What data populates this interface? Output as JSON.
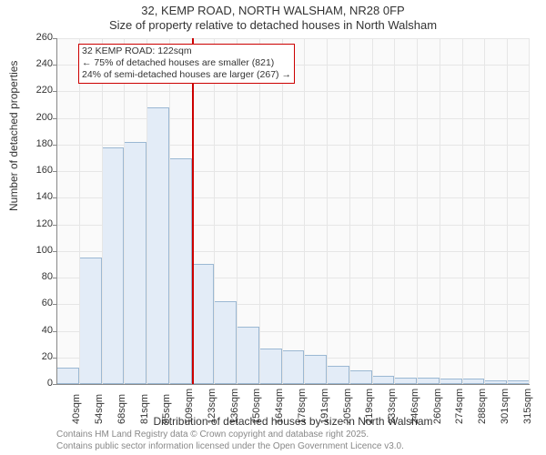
{
  "title": {
    "line1": "32, KEMP ROAD, NORTH WALSHAM, NR28 0FP",
    "line2": "Size of property relative to detached houses in North Walsham"
  },
  "chart": {
    "type": "histogram",
    "background_color": "#fafafa",
    "bar_fill": "#e3ecf7",
    "bar_stroke": "#9bb8d3",
    "grid_color": "#e6e6e6",
    "axis_color": "#888",
    "y": {
      "label": "Number of detached properties",
      "min": 0,
      "max": 260,
      "step": 20,
      "ticks": [
        0,
        20,
        40,
        60,
        80,
        100,
        120,
        140,
        160,
        180,
        200,
        220,
        240,
        260
      ]
    },
    "x": {
      "label": "Distribution of detached houses by size in North Walsham",
      "ticks": [
        "40sqm",
        "54sqm",
        "68sqm",
        "81sqm",
        "95sqm",
        "109sqm",
        "123sqm",
        "136sqm",
        "150sqm",
        "164sqm",
        "178sqm",
        "191sqm",
        "205sqm",
        "219sqm",
        "233sqm",
        "246sqm",
        "260sqm",
        "274sqm",
        "288sqm",
        "301sqm",
        "315sqm"
      ]
    },
    "bars": [
      12,
      95,
      178,
      182,
      208,
      170,
      90,
      62,
      43,
      27,
      25,
      22,
      14,
      10,
      6,
      5,
      5,
      4,
      4,
      3,
      3
    ],
    "marker": {
      "color": "#cc0000",
      "position_index": 6,
      "annotation": {
        "line1": "32 KEMP ROAD: 122sqm",
        "line2": "← 75% of detached houses are smaller (821)",
        "line3": "24% of semi-detached houses are larger (267) →"
      }
    }
  },
  "footer": {
    "line1": "Contains HM Land Registry data © Crown copyright and database right 2025.",
    "line2": "Contains public sector information licensed under the Open Government Licence v3.0."
  }
}
